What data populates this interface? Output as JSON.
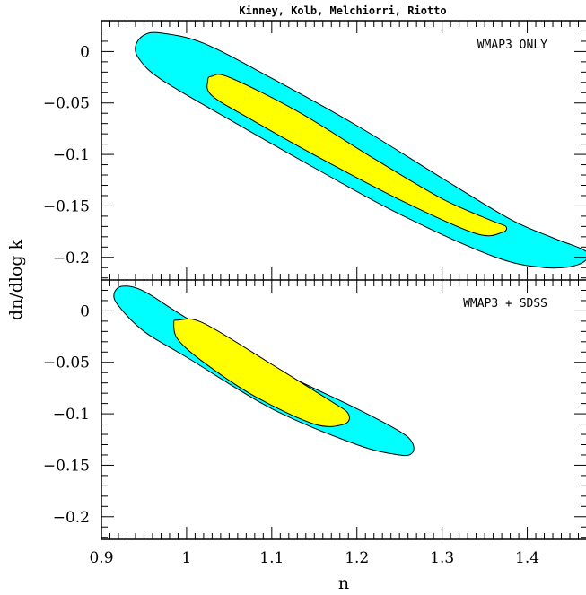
{
  "chart_data": {
    "type": "contour",
    "title": "Kinney, Kolb, Melchiorri, Riotto",
    "xlabel": "n",
    "ylabel": "dn/dlog k",
    "xlim": [
      0.9,
      1.47
    ],
    "x_ticks": [
      0.9,
      1.0,
      1.1,
      1.2,
      1.3,
      1.4
    ],
    "x_tick_labels": [
      "0.9",
      "1",
      "1.1",
      "1.2",
      "1.3",
      "1.4"
    ],
    "y_ticks": [
      0,
      -0.05,
      -0.1,
      -0.15,
      -0.2
    ],
    "y_tick_labels": [
      "0",
      "−0.05",
      "−0.1",
      "−0.15",
      "−0.2"
    ],
    "colors": {
      "outer": "#00ffff",
      "inner": "#ffff00",
      "line": "#000000"
    },
    "panels": [
      {
        "label": "WMAP3 ONLY",
        "ylim": [
          -0.222,
          0.03
        ],
        "contours": [
          {
            "level": "outer",
            "points": [
              [
                0.94,
                0.005
              ],
              [
                0.95,
                0.016
              ],
              [
                0.97,
                0.018
              ],
              [
                1.02,
                0.008
              ],
              [
                1.1,
                -0.026
              ],
              [
                1.2,
                -0.072
              ],
              [
                1.3,
                -0.123
              ],
              [
                1.38,
                -0.163
              ],
              [
                1.43,
                -0.181
              ],
              [
                1.47,
                -0.195
              ],
              [
                1.46,
                -0.207
              ],
              [
                1.42,
                -0.21
              ],
              [
                1.36,
                -0.199
              ],
              [
                1.25,
                -0.158
              ],
              [
                1.15,
                -0.113
              ],
              [
                1.05,
                -0.066
              ],
              [
                0.97,
                -0.027
              ],
              [
                0.945,
                -0.008
              ]
            ]
          },
          {
            "level": "inner",
            "points": [
              [
                1.025,
                -0.028
              ],
              [
                1.03,
                -0.024
              ],
              [
                1.05,
                -0.025
              ],
              [
                1.13,
                -0.058
              ],
              [
                1.22,
                -0.104
              ],
              [
                1.3,
                -0.143
              ],
              [
                1.36,
                -0.165
              ],
              [
                1.375,
                -0.17
              ],
              [
                1.37,
                -0.176
              ],
              [
                1.34,
                -0.177
              ],
              [
                1.26,
                -0.148
              ],
              [
                1.16,
                -0.105
              ],
              [
                1.08,
                -0.068
              ],
              [
                1.03,
                -0.043
              ]
            ]
          }
        ]
      },
      {
        "label": "WMAP3 + SDSS",
        "ylim": [
          -0.222,
          0.03
        ],
        "contours": [
          {
            "level": "outer",
            "points": [
              [
                0.915,
                0.017
              ],
              [
                0.925,
                0.024
              ],
              [
                0.95,
                0.019
              ],
              [
                1.0,
                -0.007
              ],
              [
                1.1,
                -0.055
              ],
              [
                1.2,
                -0.095
              ],
              [
                1.25,
                -0.117
              ],
              [
                1.265,
                -0.128
              ],
              [
                1.265,
                -0.138
              ],
              [
                1.25,
                -0.14
              ],
              [
                1.2,
                -0.13
              ],
              [
                1.1,
                -0.095
              ],
              [
                1.0,
                -0.045
              ],
              [
                0.95,
                -0.02
              ],
              [
                0.92,
                0.005
              ]
            ]
          },
          {
            "level": "inner",
            "points": [
              [
                0.985,
                -0.012
              ],
              [
                0.99,
                -0.009
              ],
              [
                1.02,
                -0.012
              ],
              [
                1.1,
                -0.052
              ],
              [
                1.17,
                -0.088
              ],
              [
                1.19,
                -0.1
              ],
              [
                1.185,
                -0.11
              ],
              [
                1.15,
                -0.11
              ],
              [
                1.08,
                -0.083
              ],
              [
                1.02,
                -0.05
              ],
              [
                0.99,
                -0.028
              ]
            ]
          }
        ]
      }
    ]
  }
}
